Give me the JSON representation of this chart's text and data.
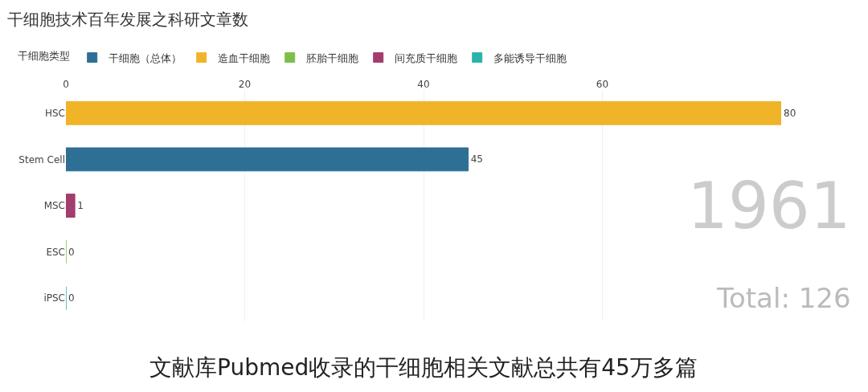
{
  "chart_data": {
    "type": "bar",
    "orientation": "horizontal",
    "title": "干细胞技术百年发展之科研文章数",
    "legend_title": "干细胞类型",
    "categories": [
      "HSC",
      "Stem Cell",
      "MSC",
      "ESC",
      "iPSC"
    ],
    "series": [
      {
        "name": "干细胞（总体）",
        "color": "#2e6f95",
        "values": [
          null,
          45,
          null,
          null,
          null
        ]
      },
      {
        "name": "造血干细胞",
        "color": "#f0b429",
        "values": [
          80,
          null,
          null,
          null,
          null
        ]
      },
      {
        "name": "胚胎干细胞",
        "color": "#7bbf4a",
        "values": [
          null,
          null,
          null,
          0,
          null
        ]
      },
      {
        "name": "间充质干细胞",
        "color": "#a23d6e",
        "values": [
          null,
          null,
          1,
          null,
          null
        ]
      },
      {
        "name": "多能诱导干细胞",
        "color": "#2bb3a8",
        "values": [
          null,
          null,
          null,
          null,
          0
        ]
      }
    ],
    "xlim": [
      0,
      80
    ],
    "xticks": [
      0,
      20,
      40,
      60
    ],
    "grid": "x",
    "legend": "top",
    "data_labels": true,
    "annotations": [
      "1961",
      "Total: 126",
      "文献库Pubmed收录的干细胞相关文献总共有45万多篇"
    ]
  }
}
